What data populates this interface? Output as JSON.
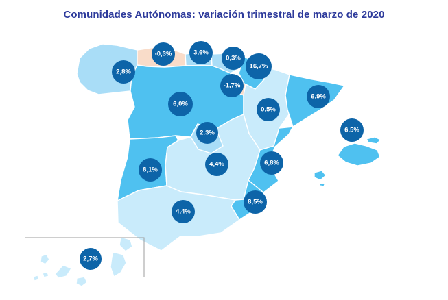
{
  "title": "Comunidades Autónomas: variación trimestral de marzo de 2020",
  "colors": {
    "title_text": "#2D3A9B",
    "region_border": "#FFFFFF",
    "inset_border": "#9E9E9E",
    "badge_fill": "#0D64A8",
    "badge_text": "#FFFFFF",
    "shades": {
      "mid": "#4FC1F0",
      "light": "#A9DDF7",
      "pale": "#C9EBFB",
      "negative": "#F9DCC9"
    }
  },
  "chart_data": {
    "type": "choropleth_map",
    "title": "Comunidades Autónomas: variación trimestral de marzo de 2020",
    "unit": "%",
    "legend": "none",
    "regions": [
      {
        "id": "galicia",
        "name": "Galicia",
        "value_label": "2,8%",
        "value": 2.8,
        "shade": "light"
      },
      {
        "id": "asturias",
        "name": "Asturias",
        "value_label": "-0,3%",
        "value": -0.3,
        "shade": "negative"
      },
      {
        "id": "cantabria",
        "name": "Cantabria",
        "value_label": "3,6%",
        "value": 3.6,
        "shade": "light"
      },
      {
        "id": "pais-vasco",
        "name": "País Vasco",
        "value_label": "0,3%",
        "value": 0.3,
        "shade": "light"
      },
      {
        "id": "navarra",
        "name": "Navarra",
        "value_label": "16,7%",
        "value": 16.7,
        "shade": "mid"
      },
      {
        "id": "la-rioja",
        "name": "La Rioja",
        "value_label": "-1,7%",
        "value": -1.7,
        "shade": "negative"
      },
      {
        "id": "castilla-y-leon",
        "name": "Castilla y León",
        "value_label": "6,0%",
        "value": 6.0,
        "shade": "mid"
      },
      {
        "id": "aragon",
        "name": "Aragón",
        "value_label": "0,5%",
        "value": 0.5,
        "shade": "pale"
      },
      {
        "id": "cataluna",
        "name": "Cataluña",
        "value_label": "6,9%",
        "value": 6.9,
        "shade": "mid"
      },
      {
        "id": "madrid",
        "name": "Comunidad de Madrid",
        "value_label": "2.3%",
        "value": 2.3,
        "shade": "light"
      },
      {
        "id": "baleares",
        "name": "Islas Baleares",
        "value_label": "6.5%",
        "value": 6.5,
        "shade": "mid"
      },
      {
        "id": "extremadura",
        "name": "Extremadura",
        "value_label": "8,1%",
        "value": 8.1,
        "shade": "mid"
      },
      {
        "id": "castilla-la-mancha",
        "name": "Castilla-La Mancha",
        "value_label": "4,4%",
        "value": 4.4,
        "shade": "pale"
      },
      {
        "id": "comunidad-valenciana",
        "name": "Comunidad Valenciana",
        "value_label": "6,8%",
        "value": 6.8,
        "shade": "mid"
      },
      {
        "id": "murcia",
        "name": "Región de Murcia",
        "value_label": "8,5%",
        "value": 8.5,
        "shade": "mid"
      },
      {
        "id": "andalucia",
        "name": "Andalucía",
        "value_label": "4,4%",
        "value": 4.4,
        "shade": "pale"
      },
      {
        "id": "canarias",
        "name": "Canarias",
        "value_label": "2,7%",
        "value": 2.7,
        "shade": "pale"
      }
    ]
  }
}
